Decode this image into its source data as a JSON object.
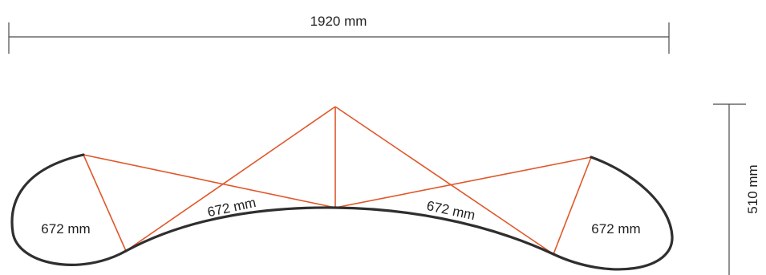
{
  "dimensions": {
    "width_label": "1920 mm",
    "height_label": "510 mm"
  },
  "segments": {
    "left_label": "672 mm",
    "center_left_label": "672 mm",
    "center_right_label": "672 mm",
    "right_label": "672 mm"
  },
  "colors": {
    "outline": "#2f2f2f",
    "truss": "#e0572a",
    "dimension_line": "#4a4a4a"
  }
}
